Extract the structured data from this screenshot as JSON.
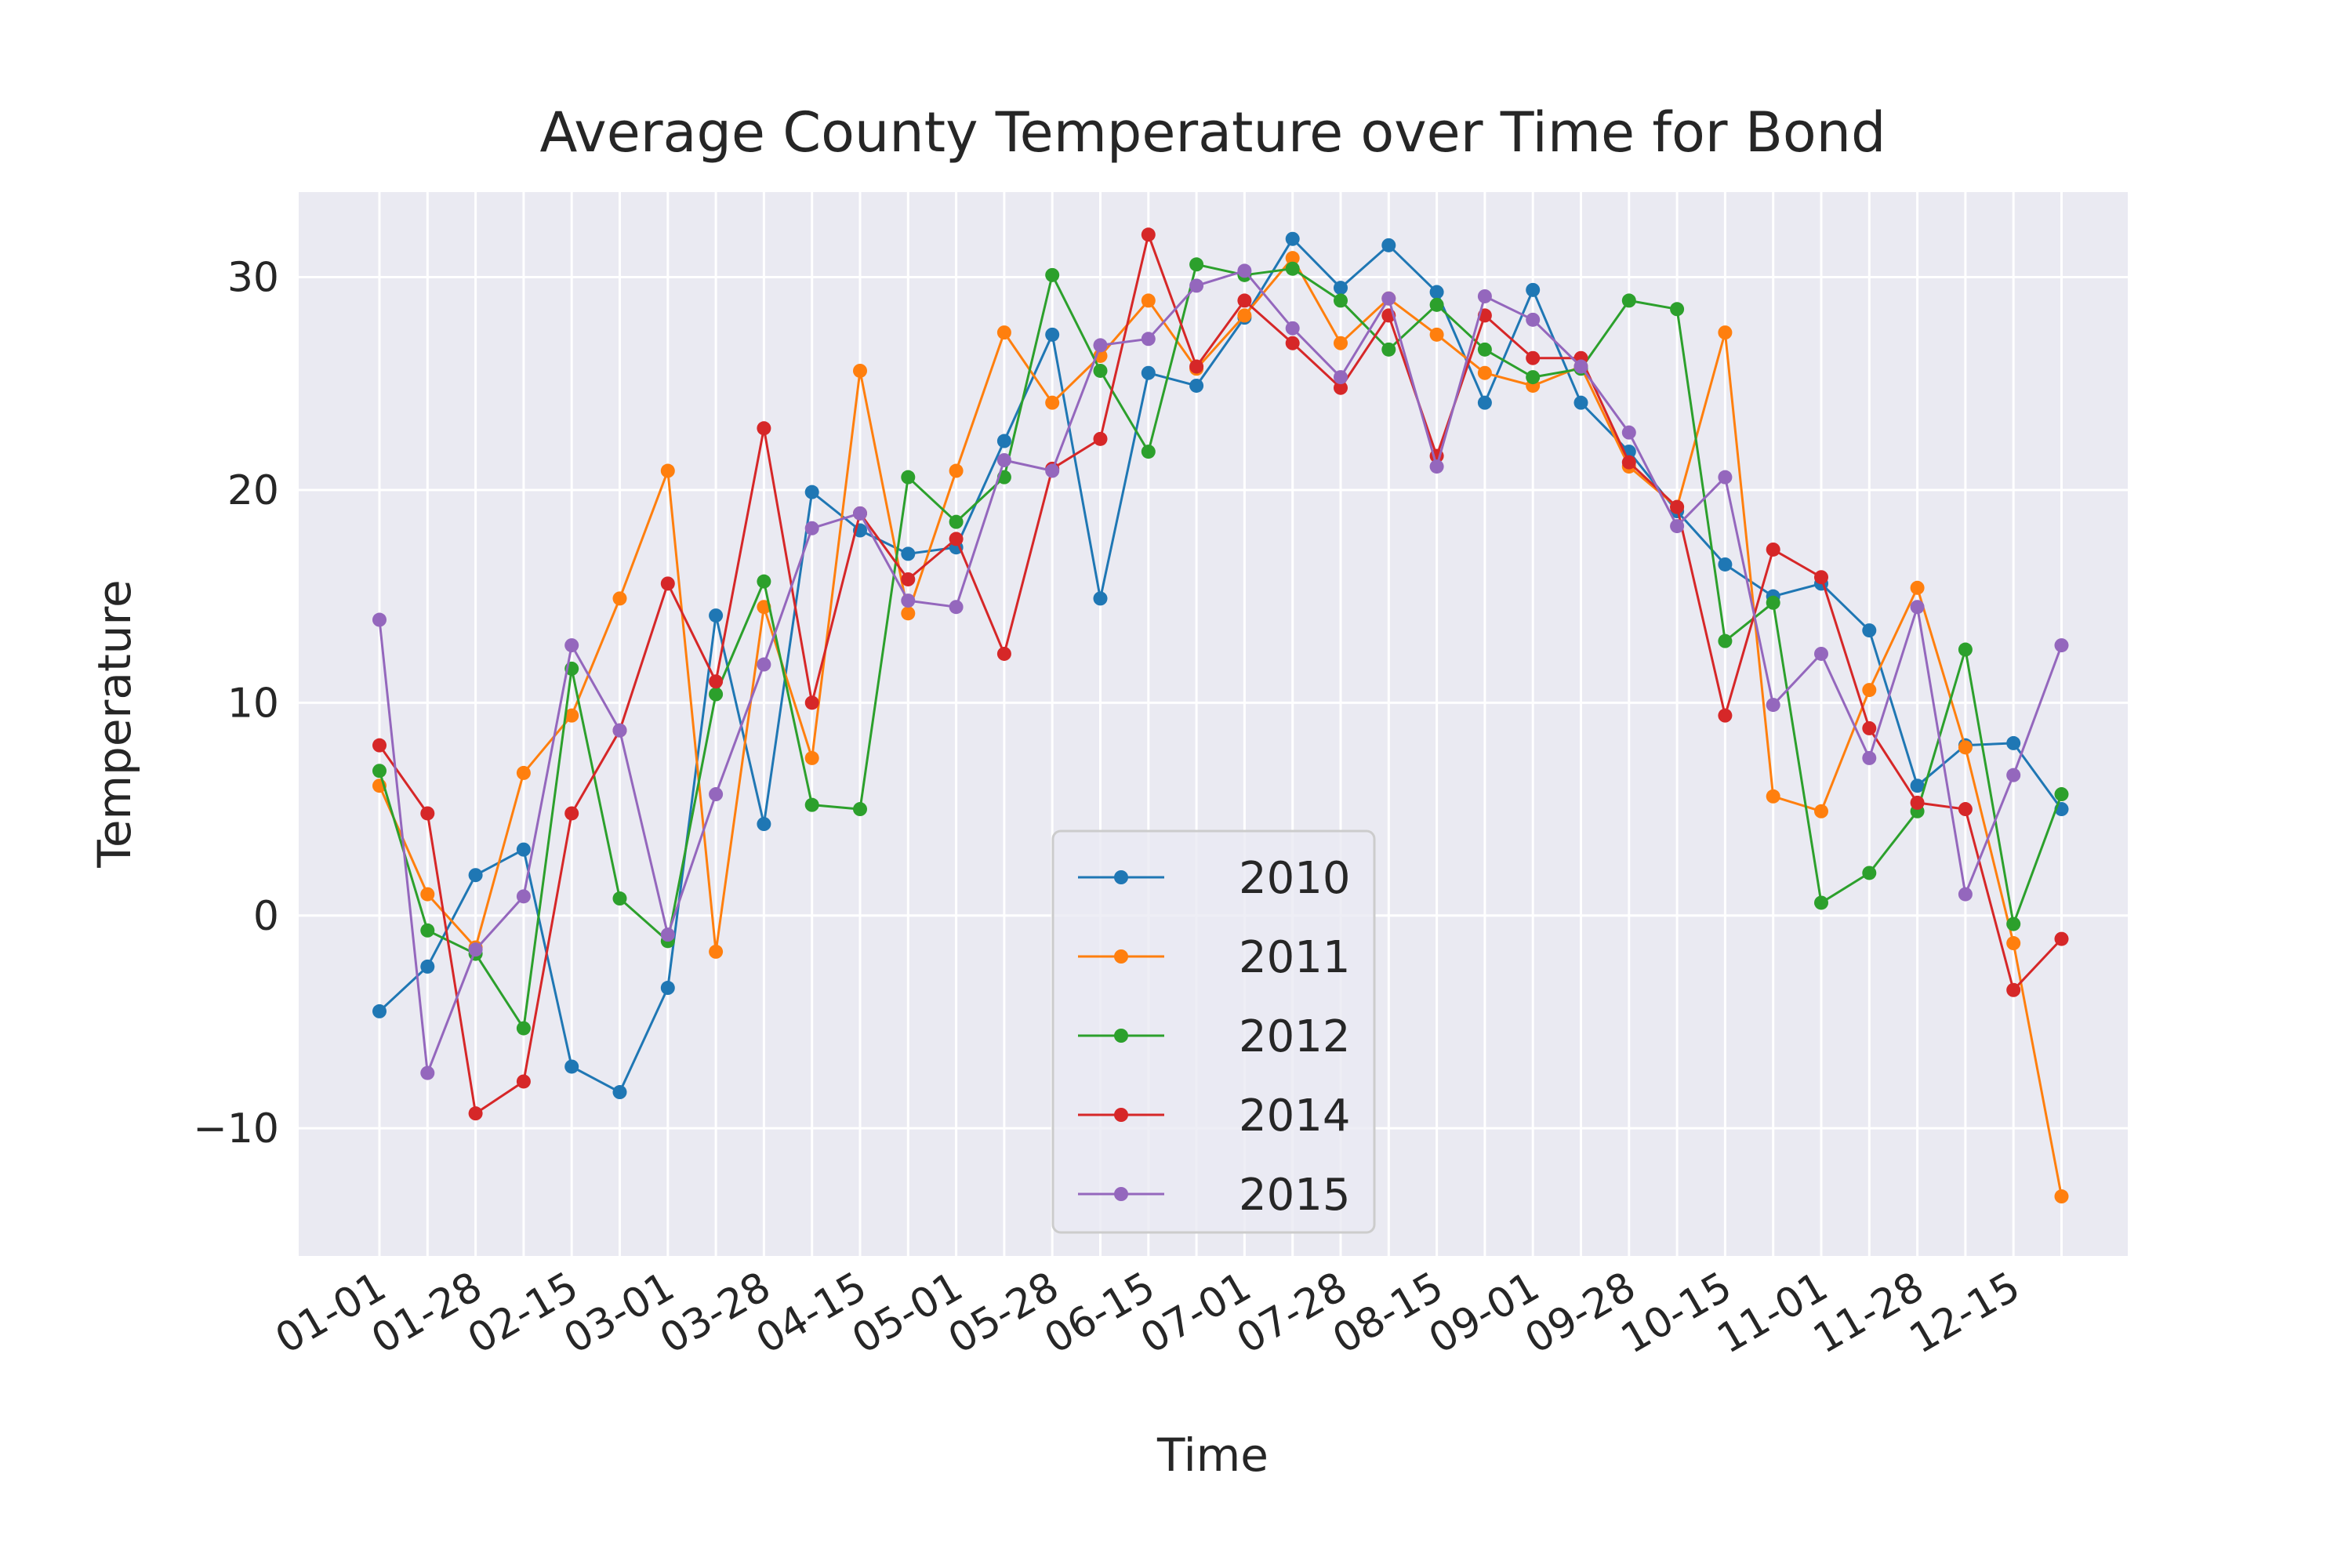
{
  "chart_data": {
    "type": "line",
    "title": "Average County Temperature over Time for Bond",
    "xlabel": "Time",
    "ylabel": "Temperature",
    "ylim": [
      -16,
      34
    ],
    "yticks": [
      -10,
      0,
      10,
      20,
      30
    ],
    "ytick_labels": [
      "−10",
      "0",
      "10",
      "20",
      "30"
    ],
    "xtick_labels": [
      "01-01",
      "01-28",
      "02-15",
      "03-01",
      "03-28",
      "04-15",
      "05-01",
      "05-28",
      "06-15",
      "07-01",
      "07-28",
      "08-15",
      "09-01",
      "09-28",
      "10-15",
      "11-01",
      "11-28",
      "12-15"
    ],
    "grid": true,
    "legend_position": "lower center",
    "colors": [
      "#1f77b4",
      "#ff7f0e",
      "#2ca02c",
      "#d62728",
      "#9467bd"
    ],
    "background": "#eaeaf2",
    "series": [
      {
        "name": "2010",
        "values": [
          -4.5,
          -2.4,
          1.9,
          3.1,
          -7.1,
          -8.3,
          -3.4,
          14.1,
          4.3,
          19.9,
          18.1,
          17.0,
          17.3,
          22.3,
          27.3,
          14.9,
          25.5,
          24.9,
          28.1,
          31.8,
          29.5,
          31.5,
          29.3,
          24.1,
          29.4,
          24.1,
          21.8,
          19.0,
          16.5,
          15.0,
          15.6,
          13.4,
          6.1,
          8.0,
          8.1,
          5.0
        ]
      },
      {
        "name": "2011",
        "values": [
          6.1,
          1.0,
          -1.5,
          6.7,
          9.4,
          14.9,
          20.9,
          -1.7,
          14.5,
          7.4,
          25.6,
          14.2,
          20.9,
          27.4,
          24.1,
          26.3,
          28.9,
          25.7,
          28.2,
          30.9,
          26.9,
          29.0,
          27.3,
          25.5,
          24.9,
          25.8,
          21.1,
          19.2,
          27.4,
          5.6,
          4.9,
          10.6,
          15.4,
          7.9,
          -1.3,
          -13.2
        ]
      },
      {
        "name": "2012",
        "values": [
          6.8,
          -0.7,
          -1.8,
          -5.3,
          11.6,
          0.8,
          -1.2,
          10.4,
          15.7,
          5.2,
          5.0,
          20.6,
          18.5,
          20.6,
          30.1,
          25.6,
          21.8,
          30.6,
          30.1,
          30.4,
          28.9,
          26.6,
          28.7,
          26.6,
          25.3,
          25.7,
          28.9,
          28.5,
          12.9,
          14.7,
          0.6,
          2.0,
          4.9,
          12.5,
          -0.4,
          5.7
        ]
      },
      {
        "name": "2014",
        "values": [
          8.0,
          4.8,
          -9.3,
          -7.8,
          4.8,
          8.7,
          15.6,
          11.0,
          22.9,
          10.0,
          18.9,
          15.8,
          17.7,
          12.3,
          21.0,
          22.4,
          32.0,
          25.8,
          28.9,
          26.9,
          24.8,
          28.2,
          21.6,
          28.2,
          26.2,
          26.2,
          21.3,
          19.2,
          9.4,
          17.2,
          15.9,
          8.8,
          5.3,
          5.0,
          -3.5,
          -1.1
        ]
      },
      {
        "name": "2015",
        "values": [
          13.9,
          -7.4,
          -1.6,
          0.9,
          12.7,
          8.7,
          -0.9,
          5.7,
          11.8,
          18.2,
          18.9,
          14.8,
          14.5,
          21.4,
          20.9,
          26.8,
          27.1,
          29.6,
          30.3,
          27.6,
          25.3,
          29.0,
          21.1,
          29.1,
          28.0,
          25.8,
          22.7,
          18.3,
          20.6,
          9.9,
          12.3,
          7.4,
          14.5,
          1.0,
          6.6,
          12.7
        ]
      }
    ]
  }
}
